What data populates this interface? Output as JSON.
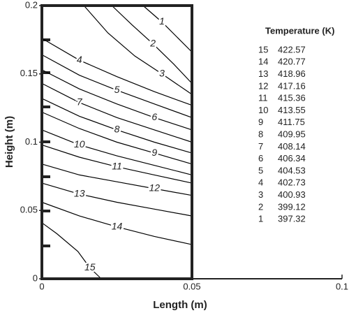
{
  "chart_data": {
    "type": "contour",
    "xlabel": "Length (m)",
    "ylabel": "Height (m)",
    "xlim": [
      0,
      0.1
    ],
    "ylim": [
      0,
      0.2
    ],
    "xticks": [
      0,
      0.05,
      0.1
    ],
    "yticks": [
      0,
      0.05,
      0.1,
      0.15,
      0.2
    ],
    "color": "#000000",
    "legend_title": "Temperature (K)",
    "levels": [
      15,
      14,
      13,
      12,
      11,
      10,
      9,
      8,
      7,
      6,
      5,
      4,
      3,
      2,
      1
    ],
    "temperatures": [
      422.57,
      420.77,
      418.96,
      417.16,
      415.36,
      413.55,
      411.75,
      409.95,
      408.14,
      406.34,
      404.53,
      402.73,
      400.93,
      399.12,
      397.32
    ],
    "contours": [
      {
        "level": 1,
        "x": [
          0.0337,
          0.04,
          0.045,
          0.05
        ],
        "y": [
          0.2,
          0.188,
          0.177,
          0.166
        ]
      },
      {
        "level": 2,
        "x": [
          0.0233,
          0.03,
          0.037,
          0.044,
          0.05
        ],
        "y": [
          0.2,
          0.186,
          0.172,
          0.157,
          0.143
        ]
      },
      {
        "level": 3,
        "x": [
          0.014,
          0.022,
          0.031,
          0.04,
          0.05
        ],
        "y": [
          0.2,
          0.18,
          0.163,
          0.15,
          0.135
        ]
      },
      {
        "level": 4,
        "x": [
          0,
          0.0125,
          0.025,
          0.0375,
          0.05
        ],
        "y": [
          0.176,
          0.16,
          0.148,
          0.137,
          0.127
        ]
      },
      {
        "level": 5,
        "x": [
          0,
          0.0125,
          0.025,
          0.0375,
          0.05
        ],
        "y": [
          0.164,
          0.149,
          0.138,
          0.128,
          0.118
        ]
      },
      {
        "level": 6,
        "x": [
          0,
          0.0125,
          0.025,
          0.0375,
          0.05
        ],
        "y": [
          0.153,
          0.139,
          0.128,
          0.118,
          0.109
        ]
      },
      {
        "level": 7,
        "x": [
          0,
          0.0125,
          0.025,
          0.0375,
          0.05
        ],
        "y": [
          0.143,
          0.129,
          0.118,
          0.109,
          0.1
        ]
      },
      {
        "level": 8,
        "x": [
          0,
          0.0125,
          0.025,
          0.0375,
          0.05
        ],
        "y": [
          0.132,
          0.119,
          0.109,
          0.1,
          0.092
        ]
      },
      {
        "level": 9,
        "x": [
          0,
          0.0125,
          0.025,
          0.0375,
          0.05
        ],
        "y": [
          0.122,
          0.11,
          0.1,
          0.092,
          0.084
        ]
      },
      {
        "level": 10,
        "x": [
          0,
          0.0125,
          0.025,
          0.0375,
          0.05
        ],
        "y": [
          0.109,
          0.098,
          0.09,
          0.083,
          0.076
        ]
      },
      {
        "level": 11,
        "x": [
          0,
          0.0125,
          0.025,
          0.0375,
          0.05
        ],
        "y": [
          0.098,
          0.089,
          0.082,
          0.076,
          0.07
        ]
      },
      {
        "level": 12,
        "x": [
          0,
          0.0125,
          0.025,
          0.0375,
          0.05
        ],
        "y": [
          0.084,
          0.076,
          0.071,
          0.066,
          0.061
        ]
      },
      {
        "level": 13,
        "x": [
          0,
          0.0125,
          0.025,
          0.0375,
          0.05
        ],
        "y": [
          0.07,
          0.062,
          0.056,
          0.051,
          0.046
        ]
      },
      {
        "level": 14,
        "x": [
          0,
          0.0125,
          0.025,
          0.0375,
          0.05
        ],
        "y": [
          0.056,
          0.046,
          0.038,
          0.031,
          0.025
        ]
      },
      {
        "level": 15,
        "x": [
          0,
          0.005,
          0.012,
          0.016,
          0.0198
        ],
        "y": [
          0.041,
          0.033,
          0.02,
          0.008,
          0
        ]
      }
    ]
  }
}
